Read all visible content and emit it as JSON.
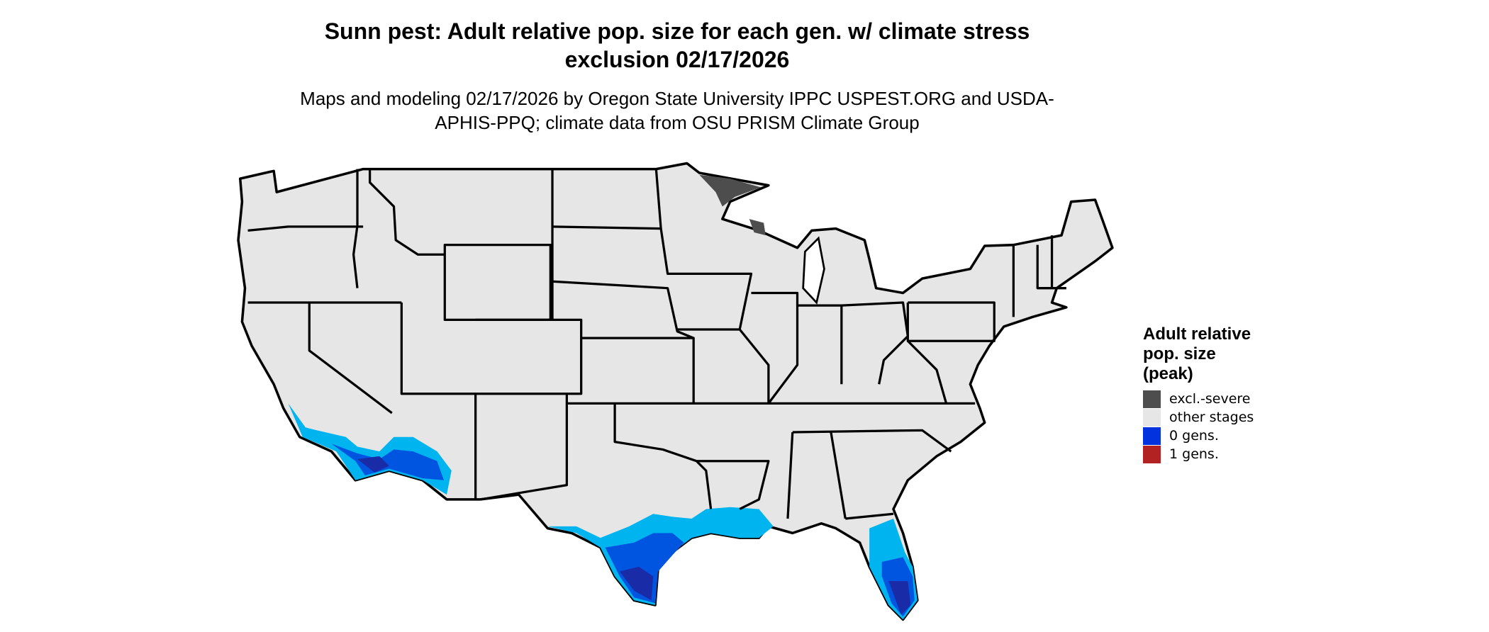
{
  "header": {
    "title": "Sunn pest: Adult relative pop. size for each gen. w/ climate stress exclusion 02/17/2026",
    "subtitle": "Maps and modeling 02/17/2026 by Oregon State University IPPC USPEST.ORG and USDA-APHIS-PPQ; climate data from OSU PRISM Climate Group"
  },
  "legend": {
    "title": "Adult relative pop. size (peak)",
    "items": [
      {
        "label": "excl.-severe",
        "color": "#4d4d4d"
      },
      {
        "label": "other stages",
        "color": "#e6e6e6"
      },
      {
        "label": "0 gens.",
        "color": "#0033dd"
      },
      {
        "label": "1 gens.",
        "color": "#b22222"
      }
    ]
  }
}
